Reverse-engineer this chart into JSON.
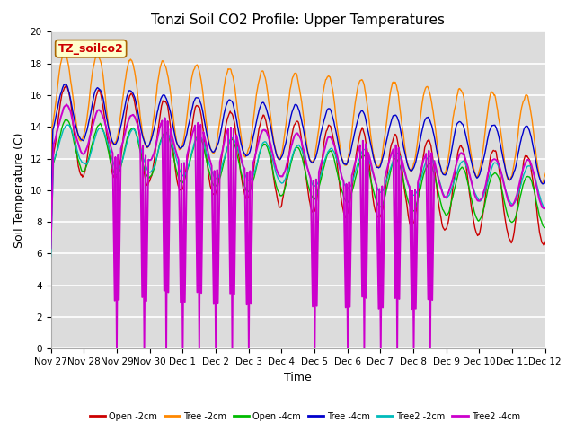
{
  "title": "Tonzi Soil CO2 Profile: Upper Temperatures",
  "xlabel": "Time",
  "ylabel": "Soil Temperature (C)",
  "ylim": [
    0,
    20
  ],
  "legend_label": "TZ_soilco2",
  "series_names": [
    "Open -2cm",
    "Tree -2cm",
    "Open -4cm",
    "Tree -4cm",
    "Tree2 -2cm",
    "Tree2 -4cm"
  ],
  "series_colors": [
    "#cc0000",
    "#ff8800",
    "#00bb00",
    "#0000cc",
    "#00bbbb",
    "#cc00cc"
  ],
  "bg_color": "#dcdcdc",
  "grid_color": "#ffffff",
  "title_fontsize": 11,
  "axis_label_fontsize": 9,
  "tick_fontsize": 7.5,
  "tick_labels": [
    "Nov 27",
    "Nov 28",
    "Nov 29",
    "Nov 30",
    "Dec 1",
    "Dec 2",
    "Dec 3",
    "Dec 4",
    "Dec 5",
    "Dec 6",
    "Dec 7",
    "Dec 8",
    "Dec 9",
    "Dec 10",
    "Dec 11",
    "Dec 12"
  ],
  "n_days": 16
}
